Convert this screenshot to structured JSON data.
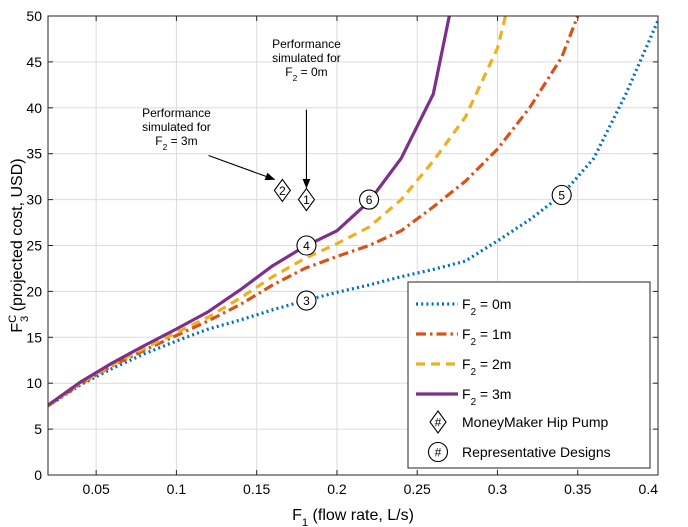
{
  "chart_data": {
    "type": "line",
    "xlim": [
      0.02,
      0.4
    ],
    "ylim": [
      0,
      50
    ],
    "xticks": [
      0.05,
      0.1,
      0.15,
      0.2,
      0.25,
      0.3,
      0.35,
      0.4
    ],
    "xtick_labels": [
      "0.05",
      "0.1",
      "0.15",
      "0.2",
      "0.25",
      "0.3",
      "0.35",
      "0.4"
    ],
    "yticks": [
      0,
      5,
      10,
      15,
      20,
      25,
      30,
      35,
      40,
      45,
      50
    ],
    "ytick_labels": [
      "0",
      "5",
      "10",
      "15",
      "20",
      "25",
      "30",
      "35",
      "40",
      "45",
      "50"
    ],
    "xlabel": {
      "base": "F",
      "sub": "1",
      "rest": " (flow rate, L/s)"
    },
    "ylabel": {
      "base": "F",
      "sub": "3",
      "sup": "C",
      "rest": " (projected cost, USD)"
    },
    "grid": true,
    "legend_position": "bottom-right",
    "series": [
      {
        "label": {
          "base": "F",
          "sub": "2",
          "rest": " = 0m"
        },
        "color": "#0072BD",
        "style": "dotted",
        "points": [
          [
            0.02,
            7.5
          ],
          [
            0.04,
            9.8
          ],
          [
            0.06,
            11.6
          ],
          [
            0.08,
            13.2
          ],
          [
            0.1,
            14.6
          ],
          [
            0.12,
            15.9
          ],
          [
            0.14,
            16.9
          ],
          [
            0.16,
            18.0
          ],
          [
            0.18,
            19.0
          ],
          [
            0.2,
            19.9
          ],
          [
            0.22,
            20.7
          ],
          [
            0.24,
            21.6
          ],
          [
            0.26,
            22.4
          ],
          [
            0.28,
            23.3
          ],
          [
            0.3,
            25.5
          ],
          [
            0.32,
            27.8
          ],
          [
            0.34,
            30.5
          ],
          [
            0.36,
            34.5
          ],
          [
            0.38,
            41.5
          ],
          [
            0.4,
            49.5
          ]
        ]
      },
      {
        "label": {
          "base": "F",
          "sub": "2",
          "rest": " = 1m"
        },
        "color": "#D95319",
        "style": "dashdot",
        "points": [
          [
            0.02,
            7.5
          ],
          [
            0.04,
            9.9
          ],
          [
            0.06,
            11.9
          ],
          [
            0.08,
            13.6
          ],
          [
            0.1,
            15.2
          ],
          [
            0.12,
            16.8
          ],
          [
            0.14,
            18.6
          ],
          [
            0.16,
            20.7
          ],
          [
            0.18,
            22.5
          ],
          [
            0.2,
            23.8
          ],
          [
            0.22,
            25.0
          ],
          [
            0.24,
            26.6
          ],
          [
            0.26,
            29.2
          ],
          [
            0.28,
            32.0
          ],
          [
            0.3,
            35.5
          ],
          [
            0.32,
            40.0
          ],
          [
            0.34,
            45.5
          ],
          [
            0.35,
            50.0
          ]
        ]
      },
      {
        "label": {
          "base": "F",
          "sub": "2",
          "rest": " = 2m"
        },
        "color": "#EDB120",
        "style": "dashed",
        "points": [
          [
            0.02,
            7.5
          ],
          [
            0.04,
            10.0
          ],
          [
            0.06,
            12.0
          ],
          [
            0.08,
            13.8
          ],
          [
            0.1,
            15.5
          ],
          [
            0.12,
            17.2
          ],
          [
            0.14,
            19.3
          ],
          [
            0.16,
            21.6
          ],
          [
            0.18,
            23.6
          ],
          [
            0.2,
            25.2
          ],
          [
            0.22,
            27.0
          ],
          [
            0.24,
            30.0
          ],
          [
            0.26,
            34.2
          ],
          [
            0.28,
            39.0
          ],
          [
            0.3,
            46.5
          ],
          [
            0.305,
            50.0
          ]
        ]
      },
      {
        "label": {
          "base": "F",
          "sub": "2",
          "rest": " = 3m"
        },
        "color": "#7E2F8E",
        "style": "solid",
        "points": [
          [
            0.02,
            7.6
          ],
          [
            0.04,
            10.1
          ],
          [
            0.06,
            12.2
          ],
          [
            0.08,
            14.1
          ],
          [
            0.1,
            15.9
          ],
          [
            0.12,
            17.8
          ],
          [
            0.14,
            20.2
          ],
          [
            0.16,
            22.8
          ],
          [
            0.18,
            24.9
          ],
          [
            0.2,
            26.6
          ],
          [
            0.22,
            29.8
          ],
          [
            0.24,
            34.5
          ],
          [
            0.26,
            41.5
          ],
          [
            0.27,
            50.0
          ]
        ]
      }
    ],
    "money_maker_points": [
      {
        "label": "2",
        "x": 0.166,
        "y": 31.0
      },
      {
        "label": "1",
        "x": 0.181,
        "y": 30.0
      }
    ],
    "representative_points": [
      {
        "label": "3",
        "x": 0.181,
        "y": 19.0
      },
      {
        "label": "4",
        "x": 0.181,
        "y": 25.0
      },
      {
        "label": "5",
        "x": 0.34,
        "y": 30.5
      },
      {
        "label": "6",
        "x": 0.22,
        "y": 30.0
      }
    ],
    "annotations": [
      {
        "lines": [
          "Performance",
          "simulated for"
        ],
        "last": {
          "base": "F",
          "sub": "2",
          "rest": " = 0m"
        },
        "anchor": [
          0.181,
          46.5
        ],
        "arrow_from": [
          0.181,
          39.8
        ],
        "arrow_to": [
          0.181,
          31.3
        ]
      },
      {
        "lines": [
          "Performance",
          "simulated for"
        ],
        "last": {
          "base": "F",
          "sub": "2",
          "rest": " = 3m"
        },
        "anchor": [
          0.1,
          39.0
        ],
        "arrow_from": [
          0.12,
          34.8
        ],
        "arrow_to": [
          0.161,
          32.2
        ]
      }
    ],
    "legend_markers": [
      {
        "symbol": "diamond",
        "hash": "#",
        "text": "MoneyMaker Hip Pump"
      },
      {
        "symbol": "circle",
        "hash": "#",
        "text": "Representative Designs"
      }
    ]
  }
}
